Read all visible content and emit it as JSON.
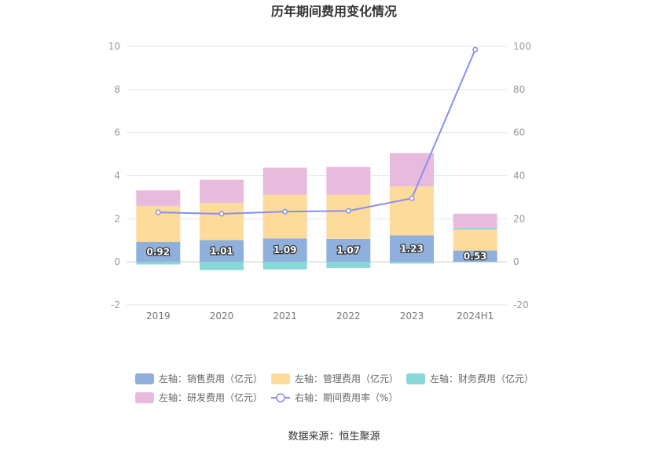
{
  "chart_data": {
    "type": "bar",
    "title": "历年期间费用变化情况",
    "categories": [
      "2019",
      "2020",
      "2021",
      "2022",
      "2023",
      "2024H1"
    ],
    "left_axis": {
      "ylim": [
        -2,
        10
      ],
      "ticks": [
        -2,
        0,
        2,
        4,
        6,
        8,
        10
      ]
    },
    "right_axis": {
      "ylim": [
        -20,
        100
      ],
      "ticks": [
        -20,
        0,
        20,
        40,
        60,
        80,
        100
      ]
    },
    "series": [
      {
        "name": "左轴：销售费用（亿元）",
        "type": "bar",
        "axis": "left",
        "color": "#8fb0dc",
        "values": [
          0.92,
          1.01,
          1.09,
          1.07,
          1.23,
          0.53
        ],
        "labels": [
          "0.92",
          "1.01",
          "1.09",
          "1.07",
          "1.23",
          "0.53"
        ]
      },
      {
        "name": "左轴：管理费用（亿元）",
        "type": "bar",
        "axis": "left",
        "color": "#fddb9a",
        "values": [
          1.68,
          1.72,
          2.03,
          2.05,
          2.27,
          0.97
        ]
      },
      {
        "name": "左轴：财务费用（亿元）",
        "type": "bar",
        "axis": "left",
        "color": "#88d8d8",
        "values": [
          -0.12,
          -0.38,
          -0.35,
          -0.28,
          -0.08,
          0.08
        ]
      },
      {
        "name": "左轴：研发费用（亿元）",
        "type": "bar",
        "axis": "left",
        "color": "#e8bbdc",
        "values": [
          0.72,
          1.08,
          1.25,
          1.29,
          1.55,
          0.66
        ]
      },
      {
        "name": "右轴：期间费用率（%）",
        "type": "line",
        "axis": "right",
        "color": "#8a8ef0",
        "values": [
          23.0,
          22.3,
          23.3,
          23.7,
          29.5,
          98.5
        ]
      }
    ],
    "legend_position": "bottom",
    "grid": true
  },
  "source": "数据来源：恒生聚源"
}
